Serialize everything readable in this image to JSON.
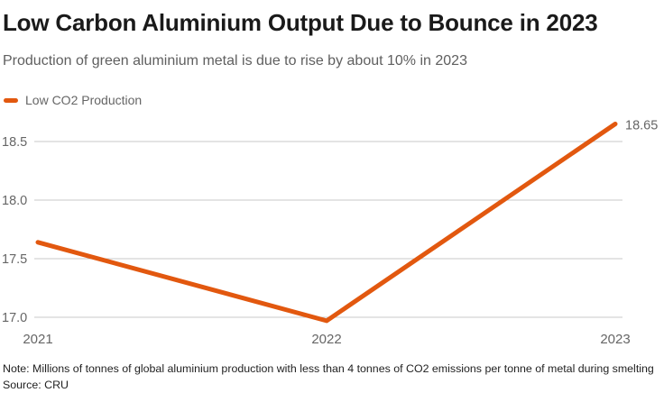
{
  "header": {
    "title": "Low Carbon Aluminium Output Due to Bounce in 2023",
    "subtitle": "Production of green aluminium metal is due to rise by about 10% in 2023"
  },
  "legend": {
    "label": "Low CO2 Production"
  },
  "chart_data": {
    "type": "line",
    "title": "Low Carbon Aluminium Output Due to Bounce in 2023",
    "subtitle": "Production of green aluminium metal is due to rise by about 10% in 2023",
    "x": [
      2021,
      2022,
      2023
    ],
    "xtick_labels": [
      "2021",
      "2022",
      "2023"
    ],
    "series": [
      {
        "name": "Low CO2 Production",
        "values": [
          17.64,
          16.97,
          18.65
        ]
      }
    ],
    "end_label": "18.65",
    "yticks": [
      17.0,
      17.5,
      18.0,
      18.5
    ],
    "ytick_labels": [
      "17.0",
      "17.5",
      "18.0",
      "18.5"
    ],
    "ylim": [
      16.9,
      18.75
    ],
    "grid": "horizontal-only",
    "legend_position": "top-left",
    "colors": {
      "line": "#E2580F",
      "gridline": "#c9c9c9",
      "tick_text": "#666666"
    }
  },
  "footer": {
    "note": "Note: Millions of tonnes of global aluminium production with less than 4 tonnes of CO2 emissions per tonne of metal during smelting",
    "source": "Source: CRU"
  }
}
